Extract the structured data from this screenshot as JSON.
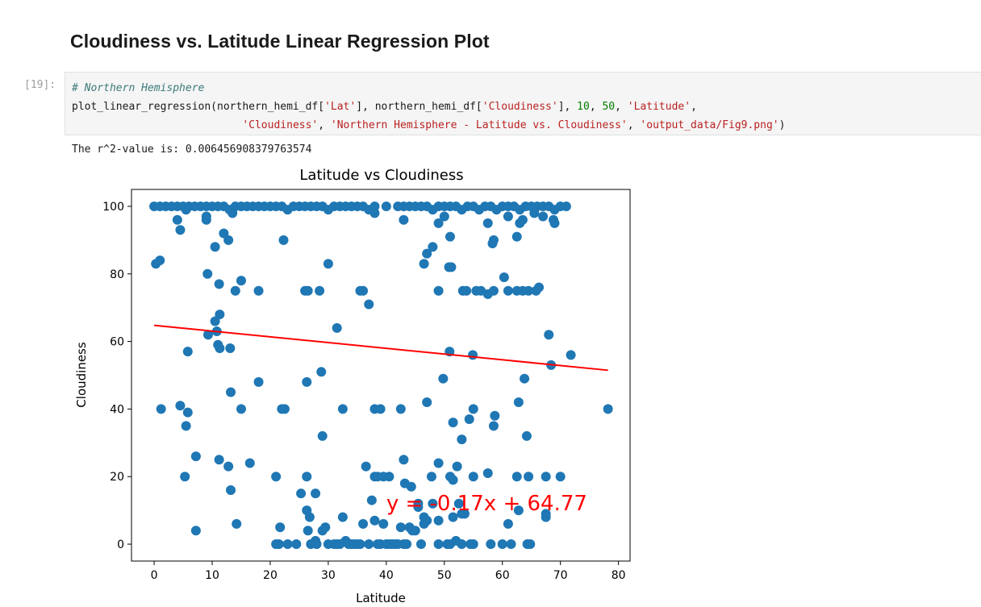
{
  "section": {
    "heading": "Cloudiness vs. Latitude Linear Regression Plot"
  },
  "cell": {
    "prompt": "[19]:",
    "comment": "# Northern Hemisphere",
    "line2": {
      "fn": "plot_linear_regression(northern_hemi_df[",
      "arg1_key": "'Lat'",
      "mid1": "], northern_hemi_df[",
      "arg2_key": "'Cloudiness'",
      "mid2": "], ",
      "num1": "10",
      "sep": ", ",
      "num2": "50",
      "sep2": ", ",
      "xlabel_arg": "'Latitude'",
      "tail": ","
    },
    "line3": {
      "indent": "                           ",
      "ylabel_arg": "'Cloudiness'",
      "sep1": ", ",
      "title_arg": "'Northern Hemisphere - Latitude vs. Cloudiness'",
      "sep2": ", ",
      "path_arg": "'output_data/Fig9.png'",
      "close": ")"
    }
  },
  "output": {
    "text": "The r^2-value is: 0.006456908379763574"
  },
  "chart_data": {
    "type": "scatter",
    "title": "Latitude vs Cloudiness",
    "xlabel": "Latitude",
    "ylabel": "Cloudiness",
    "xlim": [
      -3.9,
      82
    ],
    "ylim": [
      -5,
      105
    ],
    "xticks": [
      0,
      10,
      20,
      30,
      40,
      50,
      60,
      70,
      80
    ],
    "yticks": [
      0,
      20,
      40,
      60,
      80,
      100
    ],
    "grid": false,
    "marker_color": "#1f77b4",
    "line_color": "#ff0000",
    "regression": {
      "slope": -0.17,
      "intercept": 64.77,
      "x_range": [
        0,
        78.2
      ]
    },
    "annotation": {
      "text": "y = -0.17x + 64.77",
      "x": 40,
      "y": 10,
      "color": "#ff0000"
    },
    "points": [
      [
        0,
        100
      ],
      [
        1,
        100
      ],
      [
        2,
        100
      ],
      [
        3,
        100
      ],
      [
        4,
        100
      ],
      [
        5,
        100
      ],
      [
        5.5,
        99
      ],
      [
        6,
        100
      ],
      [
        7,
        100
      ],
      [
        8,
        100
      ],
      [
        9,
        100
      ],
      [
        10,
        100
      ],
      [
        11,
        100
      ],
      [
        12,
        100
      ],
      [
        13,
        99
      ],
      [
        14,
        100
      ],
      [
        15,
        100
      ],
      [
        16,
        100
      ],
      [
        17,
        100
      ],
      [
        18,
        100
      ],
      [
        19,
        100
      ],
      [
        20,
        100
      ],
      [
        21,
        100
      ],
      [
        22,
        100
      ],
      [
        23,
        99
      ],
      [
        24,
        100
      ],
      [
        25,
        100
      ],
      [
        26,
        100
      ],
      [
        27,
        100
      ],
      [
        28,
        100
      ],
      [
        29,
        100
      ],
      [
        30,
        99
      ],
      [
        31,
        100
      ],
      [
        32,
        100
      ],
      [
        33,
        100
      ],
      [
        34,
        100
      ],
      [
        35,
        100
      ],
      [
        36,
        100
      ],
      [
        37,
        99
      ],
      [
        38,
        100
      ],
      [
        40,
        100
      ],
      [
        42,
        100
      ],
      [
        43,
        100
      ],
      [
        44,
        100
      ],
      [
        45,
        100
      ],
      [
        46,
        100
      ],
      [
        47,
        100
      ],
      [
        48,
        99
      ],
      [
        49,
        100
      ],
      [
        50,
        100
      ],
      [
        51,
        100
      ],
      [
        52,
        100
      ],
      [
        53,
        99
      ],
      [
        54,
        100
      ],
      [
        55,
        100
      ],
      [
        56,
        99
      ],
      [
        57,
        100
      ],
      [
        58,
        100
      ],
      [
        59,
        99
      ],
      [
        60,
        100
      ],
      [
        61,
        100
      ],
      [
        62,
        100
      ],
      [
        63,
        99
      ],
      [
        64,
        100
      ],
      [
        65,
        100
      ],
      [
        66,
        100
      ],
      [
        67,
        100
      ],
      [
        68,
        100
      ],
      [
        69,
        99
      ],
      [
        70,
        100
      ],
      [
        71,
        100
      ],
      [
        4,
        96
      ],
      [
        4.5,
        93
      ],
      [
        9,
        97
      ],
      [
        9,
        96
      ],
      [
        12,
        92
      ],
      [
        12.8,
        90
      ],
      [
        13.5,
        98
      ],
      [
        22.3,
        90
      ],
      [
        38,
        98
      ],
      [
        43,
        96
      ],
      [
        49,
        95
      ],
      [
        50,
        97
      ],
      [
        51,
        91
      ],
      [
        57.5,
        95
      ],
      [
        58.5,
        90
      ],
      [
        58.3,
        89
      ],
      [
        61,
        97
      ],
      [
        62.5,
        91
      ],
      [
        63,
        95
      ],
      [
        63.5,
        96
      ],
      [
        65.5,
        98
      ],
      [
        67,
        97
      ],
      [
        68.8,
        96
      ],
      [
        69,
        95
      ],
      [
        0.3,
        83
      ],
      [
        1,
        84
      ],
      [
        9.2,
        80
      ],
      [
        10.5,
        88
      ],
      [
        11.2,
        77
      ],
      [
        14,
        75
      ],
      [
        15,
        78
      ],
      [
        18,
        75
      ],
      [
        26,
        75
      ],
      [
        26.5,
        75
      ],
      [
        28.5,
        75
      ],
      [
        30,
        83
      ],
      [
        35.5,
        75
      ],
      [
        36,
        75
      ],
      [
        46.5,
        83
      ],
      [
        47,
        86
      ],
      [
        48,
        88
      ],
      [
        49,
        75
      ],
      [
        50.8,
        82
      ],
      [
        51.2,
        82
      ],
      [
        53.2,
        75
      ],
      [
        53.8,
        75
      ],
      [
        55.5,
        75
      ],
      [
        56.3,
        75
      ],
      [
        57.5,
        74
      ],
      [
        58.5,
        75
      ],
      [
        60.3,
        79
      ],
      [
        61,
        75
      ],
      [
        62.5,
        75
      ],
      [
        63.5,
        75
      ],
      [
        64.5,
        75
      ],
      [
        65.8,
        75
      ],
      [
        66.3,
        76
      ],
      [
        11.3,
        68
      ],
      [
        10.5,
        66
      ],
      [
        9.3,
        62
      ],
      [
        10.8,
        63
      ],
      [
        11,
        59
      ],
      [
        11.3,
        58
      ],
      [
        13.1,
        58
      ],
      [
        5.8,
        57
      ],
      [
        31.5,
        64
      ],
      [
        37,
        71
      ],
      [
        68,
        62
      ],
      [
        68.4,
        53
      ],
      [
        71.8,
        56
      ],
      [
        50.9,
        57
      ],
      [
        54.9,
        56
      ],
      [
        1.2,
        40
      ],
      [
        4.5,
        41
      ],
      [
        5.5,
        35
      ],
      [
        5.8,
        39
      ],
      [
        13.2,
        45
      ],
      [
        15,
        40
      ],
      [
        18,
        48
      ],
      [
        22,
        40
      ],
      [
        22.5,
        40
      ],
      [
        26.3,
        48
      ],
      [
        28.8,
        51
      ],
      [
        29,
        32
      ],
      [
        32.5,
        40
      ],
      [
        38,
        40
      ],
      [
        39,
        40
      ],
      [
        42.5,
        40
      ],
      [
        47,
        42
      ],
      [
        49.8,
        49
      ],
      [
        51.5,
        36
      ],
      [
        53,
        31
      ],
      [
        54.3,
        37
      ],
      [
        55,
        40
      ],
      [
        58.7,
        38
      ],
      [
        58.5,
        35
      ],
      [
        62.8,
        42
      ],
      [
        63.8,
        49
      ],
      [
        64.2,
        32
      ],
      [
        78.2,
        40
      ],
      [
        5.3,
        20
      ],
      [
        7.2,
        26
      ],
      [
        11.2,
        25
      ],
      [
        12.8,
        23
      ],
      [
        13.2,
        16
      ],
      [
        16.5,
        24
      ],
      [
        21,
        20
      ],
      [
        25.3,
        15
      ],
      [
        26.3,
        20
      ],
      [
        27.8,
        15
      ],
      [
        36.5,
        23
      ],
      [
        38,
        20
      ],
      [
        38.5,
        20
      ],
      [
        39.5,
        20
      ],
      [
        40.5,
        20
      ],
      [
        43,
        25
      ],
      [
        43.2,
        18
      ],
      [
        44.3,
        17
      ],
      [
        45.5,
        12
      ],
      [
        46.5,
        8
      ],
      [
        47.8,
        20
      ],
      [
        49,
        24
      ],
      [
        51,
        20
      ],
      [
        51.5,
        19
      ],
      [
        52.2,
        23
      ],
      [
        52.5,
        12
      ],
      [
        53,
        9
      ],
      [
        55,
        20
      ],
      [
        57.5,
        21
      ],
      [
        62.5,
        20
      ],
      [
        64.5,
        20
      ],
      [
        67.5,
        9
      ],
      [
        67.5,
        20
      ],
      [
        70,
        20
      ],
      [
        7.2,
        4
      ],
      [
        14.2,
        6
      ],
      [
        21,
        0
      ],
      [
        21.5,
        0
      ],
      [
        21.7,
        5
      ],
      [
        23,
        0
      ],
      [
        24.5,
        0
      ],
      [
        26.3,
        10
      ],
      [
        26.5,
        4
      ],
      [
        26.8,
        8
      ],
      [
        27,
        0
      ],
      [
        27.8,
        1
      ],
      [
        28,
        0
      ],
      [
        29,
        4
      ],
      [
        29.5,
        5
      ],
      [
        30,
        0
      ],
      [
        31,
        0
      ],
      [
        31.5,
        0
      ],
      [
        32,
        0
      ],
      [
        32.5,
        8
      ],
      [
        33,
        1
      ],
      [
        33.5,
        0
      ],
      [
        34,
        0
      ],
      [
        34.5,
        0
      ],
      [
        35,
        0
      ],
      [
        35.5,
        0
      ],
      [
        36,
        6
      ],
      [
        37,
        0
      ],
      [
        37.5,
        13
      ],
      [
        38,
        7
      ],
      [
        38.5,
        0
      ],
      [
        39,
        0
      ],
      [
        39.5,
        6
      ],
      [
        40,
        0
      ],
      [
        40.5,
        0
      ],
      [
        41,
        0
      ],
      [
        41.5,
        0
      ],
      [
        42,
        0
      ],
      [
        42.5,
        5
      ],
      [
        43,
        0
      ],
      [
        43.5,
        0
      ],
      [
        44,
        5
      ],
      [
        44.5,
        4
      ],
      [
        45,
        4
      ],
      [
        45.5,
        11
      ],
      [
        46,
        0
      ],
      [
        46.5,
        6
      ],
      [
        47,
        7
      ],
      [
        48,
        12
      ],
      [
        49,
        7
      ],
      [
        49,
        0
      ],
      [
        50.5,
        0
      ],
      [
        51,
        0
      ],
      [
        51.5,
        8
      ],
      [
        52,
        1
      ],
      [
        53,
        0
      ],
      [
        53.5,
        9
      ],
      [
        54.5,
        0
      ],
      [
        55,
        0
      ],
      [
        58,
        0
      ],
      [
        60,
        0
      ],
      [
        61,
        6
      ],
      [
        61.5,
        0
      ],
      [
        62.8,
        10
      ],
      [
        64.3,
        0
      ],
      [
        64.8,
        0
      ],
      [
        67.5,
        8
      ]
    ]
  }
}
